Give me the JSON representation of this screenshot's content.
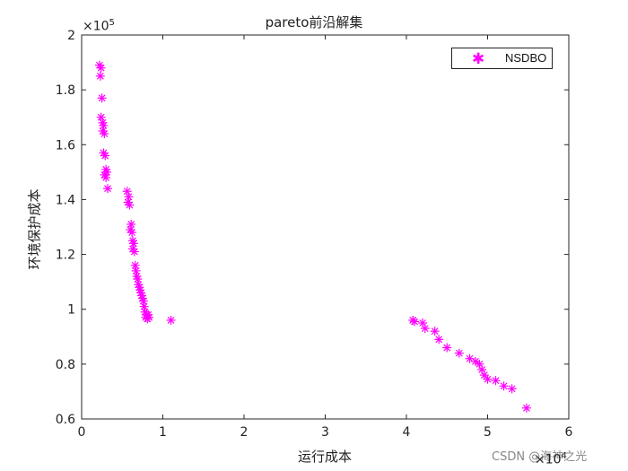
{
  "chart_data": {
    "type": "scatter",
    "title": "pareto前沿解集",
    "xlabel": "运行成本",
    "ylabel": "环境保护成本",
    "x_exponent_label": "×10",
    "x_exponent": "4",
    "y_exponent_label": "×10",
    "y_exponent": "5",
    "xlim": [
      0,
      60000
    ],
    "ylim": [
      60000,
      200000
    ],
    "xticks": [
      0,
      10000,
      20000,
      30000,
      40000,
      50000,
      60000
    ],
    "xtick_labels": [
      "0",
      "1",
      "2",
      "3",
      "4",
      "5",
      "6"
    ],
    "yticks": [
      60000,
      80000,
      100000,
      120000,
      140000,
      160000,
      180000,
      200000
    ],
    "ytick_labels": [
      "0.6",
      "0.8",
      "1",
      "1.2",
      "1.4",
      "1.6",
      "1.8",
      "2"
    ],
    "grid": false,
    "legend_position": "top-right",
    "series": [
      {
        "name": "NSDBO",
        "marker": "asterisk",
        "color": "#ff00ff",
        "x": [
          2200,
          2400,
          2300,
          2500,
          2400,
          2600,
          2700,
          2600,
          2800,
          2700,
          2900,
          3000,
          2800,
          3100,
          3000,
          3200,
          5600,
          5800,
          5700,
          5900,
          6100,
          6000,
          6200,
          6300,
          6400,
          6300,
          6500,
          6600,
          6700,
          6800,
          6900,
          7000,
          7100,
          7200,
          7300,
          7400,
          7500,
          7600,
          7700,
          7800,
          7900,
          8000,
          8100,
          8200,
          8300,
          11000,
          40800,
          41000,
          42000,
          42300,
          43500,
          44000,
          45000,
          46500,
          47800,
          48500,
          49000,
          49300,
          49600,
          50000,
          51000,
          52000,
          53000,
          54800
        ],
        "y": [
          189000,
          188000,
          185000,
          177000,
          170000,
          168000,
          167000,
          165000,
          164000,
          157000,
          156000,
          151000,
          149000,
          150000,
          148000,
          144000,
          143000,
          141000,
          139000,
          138000,
          131000,
          129000,
          128000,
          125000,
          124000,
          122000,
          121000,
          116000,
          114000,
          112000,
          111000,
          109000,
          108000,
          107000,
          106000,
          105000,
          104000,
          103000,
          101000,
          99000,
          97000,
          98000,
          96500,
          98000,
          97000,
          96000,
          96000,
          95500,
          95000,
          93000,
          92000,
          89000,
          86000,
          84000,
          82000,
          81000,
          80000,
          78000,
          76000,
          74500,
          74000,
          72000,
          71000,
          64000
        ]
      }
    ]
  },
  "watermark": "CSDN @海神之光"
}
